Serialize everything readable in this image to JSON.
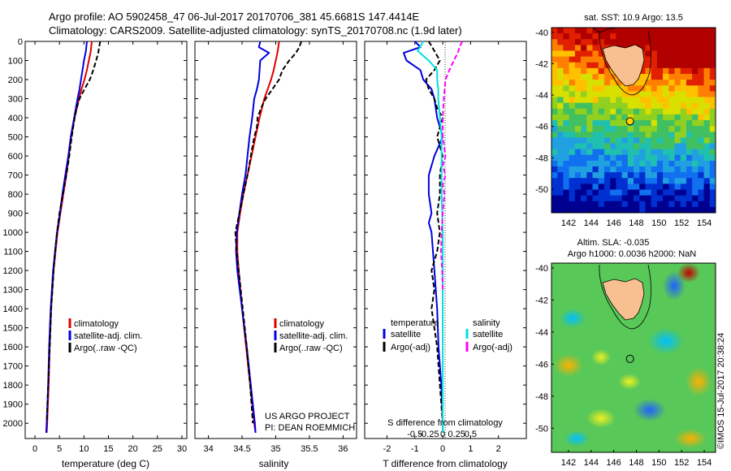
{
  "header": {
    "line1": "Argo profile: AO 5902458_47 06-Jul-2017 20170706_381 45.6681S 147.4414E",
    "line2": "Climatology: CARS2009. Satellite-adjusted climatology: synTS_20170708.nc (1.9d later)"
  },
  "colors": {
    "climatology": "#e00000",
    "satellite": "#0000e0",
    "argo": "#000000",
    "sat_salinity": "#00e0e0",
    "argo_salinity": "#ff00ff"
  },
  "credits": {
    "project": "US ARGO PROJECT",
    "pi": "PI: DEAN ROEMMICH",
    "stamp": "©IMOS 15-Jul-2017 20:38:24"
  },
  "chart_data": [
    {
      "id": "temperature",
      "type": "line",
      "xlabel": "temperature (deg C)",
      "xlim": [
        -2,
        31
      ],
      "xticks": [
        0,
        5,
        10,
        15,
        20,
        25,
        30
      ],
      "xtick_labels": [
        "0",
        "5",
        "10",
        "15",
        "20",
        "25",
        "30"
      ],
      "ylim": [
        2080,
        0
      ],
      "yticks": [
        0,
        100,
        200,
        300,
        400,
        500,
        600,
        700,
        800,
        900,
        1000,
        1100,
        1200,
        1300,
        1400,
        1500,
        1600,
        1700,
        1800,
        1900,
        2000
      ],
      "ytick_labels": [
        "0",
        "100",
        "200",
        "300",
        "400",
        "500",
        "600",
        "700",
        "800",
        "900",
        "1000",
        "1100",
        "1200",
        "1300",
        "1400",
        "1500",
        "1600",
        "1700",
        "1800",
        "1900",
        "2000"
      ],
      "legend": {
        "position": "lower-right",
        "entries": [
          "climatology",
          "satellite-adj. clim.",
          "Argo(..raw -QC)"
        ]
      },
      "series": [
        {
          "name": "climatology",
          "color": "#e00000",
          "dash": "none",
          "depth": [
            0,
            50,
            100,
            150,
            200,
            250,
            300,
            400,
            500,
            600,
            700,
            800,
            900,
            1000,
            1200,
            1400,
            1600,
            1800,
            2000,
            2050
          ],
          "values": [
            11.6,
            11.4,
            11.0,
            10.6,
            10.1,
            9.5,
            9.0,
            8.1,
            7.4,
            6.9,
            6.4,
            5.8,
            5.2,
            4.6,
            3.8,
            3.3,
            3.0,
            2.8,
            2.5,
            2.4
          ]
        },
        {
          "name": "satellite-adj. clim.",
          "color": "#0000e0",
          "dash": "none",
          "depth": [
            0,
            50,
            100,
            150,
            200,
            250,
            300,
            400,
            500,
            600,
            700,
            800,
            900,
            1000,
            1200,
            1400,
            1600,
            1800,
            2000,
            2050
          ],
          "values": [
            10.6,
            10.4,
            10.0,
            9.7,
            9.4,
            9.1,
            8.7,
            8.0,
            7.3,
            6.8,
            6.2,
            5.6,
            5.1,
            4.5,
            3.7,
            3.2,
            2.9,
            2.7,
            2.4,
            2.3
          ]
        },
        {
          "name": "Argo(..raw -QC)",
          "color": "#000000",
          "dash": "6,3",
          "depth": [
            0,
            30,
            60,
            100,
            150,
            200,
            250,
            300,
            350,
            400,
            500,
            600,
            700,
            800,
            900,
            1000,
            1100,
            1200,
            1400,
            1600,
            1800,
            2000
          ],
          "values": [
            13.3,
            13.1,
            12.9,
            12.5,
            11.9,
            11.2,
            10.1,
            9.1,
            8.5,
            8.1,
            7.5,
            7.0,
            6.4,
            5.7,
            5.0,
            4.5,
            4.1,
            3.8,
            3.3,
            3.0,
            2.7,
            2.4
          ]
        }
      ]
    },
    {
      "id": "salinity",
      "type": "line",
      "xlabel": "salinity",
      "xlim": [
        33.8,
        36.2
      ],
      "xticks": [
        34,
        34.5,
        35,
        35.5,
        36
      ],
      "xtick_labels": [
        "34",
        "34.5",
        "35",
        "35.5",
        "36"
      ],
      "ylim": [
        2080,
        0
      ],
      "legend": {
        "position": "lower-right",
        "entries": [
          "climatology",
          "satellite-adj. clim.",
          "Argo(..raw -QC)"
        ]
      },
      "series": [
        {
          "name": "climatology",
          "color": "#e00000",
          "dash": "none",
          "depth": [
            0,
            50,
            100,
            150,
            200,
            250,
            300,
            400,
            500,
            600,
            700,
            800,
            900,
            1000,
            1100,
            1200,
            1400,
            1600,
            1800,
            2000,
            2050
          ],
          "values": [
            35.05,
            35.03,
            35.0,
            34.97,
            34.93,
            34.88,
            34.83,
            34.76,
            34.7,
            34.64,
            34.58,
            34.52,
            34.47,
            34.43,
            34.43,
            34.45,
            34.5,
            34.56,
            34.62,
            34.68,
            34.7
          ]
        },
        {
          "name": "satellite-adj. clim.",
          "color": "#0000e0",
          "dash": "none",
          "depth": [
            0,
            30,
            60,
            100,
            150,
            200,
            250,
            300,
            400,
            500,
            600,
            700,
            800,
            900,
            1000,
            1100,
            1200,
            1400,
            1600,
            1800,
            2000,
            2050
          ],
          "values": [
            34.77,
            34.75,
            34.9,
            34.77,
            34.76,
            34.75,
            34.72,
            34.68,
            34.65,
            34.61,
            34.58,
            34.55,
            34.5,
            34.46,
            34.42,
            34.41,
            34.43,
            34.5,
            34.57,
            34.63,
            34.69,
            34.7
          ]
        },
        {
          "name": "Argo(..raw -QC)",
          "color": "#000000",
          "dash": "6,3",
          "depth": [
            0,
            30,
            60,
            100,
            150,
            200,
            250,
            300,
            350,
            400,
            450,
            500,
            600,
            700,
            800,
            900,
            1000,
            1100,
            1200,
            1400,
            1600,
            1800,
            2000
          ],
          "values": [
            35.38,
            35.35,
            35.3,
            35.2,
            35.1,
            35.05,
            34.95,
            34.85,
            34.78,
            34.73,
            34.72,
            34.68,
            34.63,
            34.58,
            34.52,
            34.46,
            34.4,
            34.42,
            34.45,
            34.51,
            34.57,
            34.62,
            34.66
          ]
        }
      ]
    },
    {
      "id": "difference",
      "type": "line",
      "xlabel": "T difference from climatology",
      "xlim": [
        -2.8,
        3.0
      ],
      "xticks": [
        -2,
        -1,
        0,
        1,
        2
      ],
      "xtick_labels": [
        "-2",
        "-1",
        "0",
        "1",
        "2"
      ],
      "top_xlabel": "S difference from climatology",
      "top_xticks": [
        -0.5,
        -0.25,
        0,
        0.25,
        0.5
      ],
      "top_xtick_labels": [
        "-0.5",
        "-0.25",
        "0",
        "0.25",
        "0.5"
      ],
      "ylim": [
        2080,
        0
      ],
      "legend": {
        "position": "lower-center",
        "entries": [
          "temperature",
          "satellite",
          "Argo(-adj)",
          "salinity",
          "satellite",
          "Argo(-adj)"
        ]
      },
      "series": [
        {
          "name": "temperature satellite",
          "color": "#0000e0",
          "dash": "none",
          "depth": [
            0,
            30,
            60,
            100,
            150,
            200,
            250,
            300,
            400,
            500,
            600,
            700,
            800,
            900,
            950,
            1000,
            1200,
            1400,
            1600,
            1800,
            2000,
            2050
          ],
          "values": [
            -1.0,
            -0.8,
            -1.4,
            -1.3,
            -0.8,
            -0.7,
            -0.4,
            -0.3,
            -0.2,
            0.0,
            -0.3,
            -0.5,
            -0.5,
            -0.4,
            -0.5,
            -0.4,
            -0.3,
            -0.2,
            -0.15,
            -0.05,
            0.0,
            0.0
          ]
        },
        {
          "name": "temperature Argo(-adj)",
          "color": "#000000",
          "dash": "6,3",
          "depth": [
            0,
            50,
            100,
            150,
            200,
            250,
            300,
            350,
            400,
            450,
            500,
            600,
            700,
            800,
            900,
            1000,
            1100,
            1200,
            1300,
            1400,
            1500,
            1600,
            1800,
            2000
          ],
          "values": [
            -0.5,
            -0.3,
            -0.1,
            -0.3,
            -0.6,
            -0.5,
            -0.3,
            -0.2,
            0.0,
            -0.1,
            -0.2,
            0.0,
            -0.1,
            -0.1,
            -0.2,
            -0.1,
            -0.2,
            -0.4,
            -0.3,
            -0.4,
            -0.3,
            -0.2,
            -0.1,
            0.0
          ]
        },
        {
          "name": "salinity satellite",
          "color": "#00e0e0",
          "dash": "none",
          "depth": [
            0,
            50,
            100,
            150,
            200,
            250,
            300,
            400,
            500,
            600,
            700,
            800,
            900,
            1000,
            1200,
            1400,
            1600,
            1800,
            2000,
            2050
          ],
          "values": [
            -0.35,
            -0.45,
            -0.25,
            -0.1,
            -0.1,
            -0.08,
            -0.08,
            -0.05,
            -0.02,
            -0.02,
            -0.02,
            -0.02,
            -0.01,
            0.0,
            0.0,
            0.0,
            0.0,
            0.0,
            0.0,
            0.0
          ]
        },
        {
          "name": "salinity Argo(-adj)",
          "color": "#ff00ff",
          "dash": "6,3",
          "depth": [
            0,
            30,
            60,
            100,
            150,
            200,
            300,
            400,
            500,
            600,
            650,
            700,
            750,
            800,
            900,
            1000,
            1100,
            1200,
            1300
          ],
          "values": [
            0.35,
            0.3,
            0.27,
            0.2,
            0.12,
            0.05,
            0.02,
            0.0,
            0.0,
            0.05,
            0.0,
            0.05,
            0.0,
            0.03,
            0.0,
            -0.02,
            -0.03,
            -0.01,
            0.0
          ]
        }
      ]
    },
    {
      "id": "sst_map",
      "type": "heatmap",
      "title": "sat. SST: 10.9  Argo: 13.5",
      "xlim": [
        140.5,
        155
      ],
      "xticks": [
        142,
        144,
        146,
        148,
        150,
        152,
        154
      ],
      "xtick_labels": [
        "142",
        "144",
        "146",
        "148",
        "150",
        "152",
        "154"
      ],
      "ylim": [
        -51.5,
        -39.7
      ],
      "yticks": [
        -40,
        -42,
        -44,
        -46,
        -48,
        -50
      ],
      "ytick_labels": [
        "-40",
        "-42",
        "-44",
        "-46",
        "-48",
        "-50"
      ],
      "marker": {
        "lon": 147.44,
        "lat": -45.67,
        "fill": "#ffd400"
      }
    },
    {
      "id": "sla_map",
      "type": "heatmap",
      "title": "Altim. SLA: -0.035",
      "subtitle": "Argo h1000: 0.0036 h2000: NaN",
      "xlim": [
        140.5,
        155
      ],
      "xticks": [
        142,
        144,
        146,
        148,
        150,
        152,
        154
      ],
      "xtick_labels": [
        "142",
        "144",
        "146",
        "148",
        "150",
        "152",
        "154"
      ],
      "ylim": [
        -51.5,
        -39.7
      ],
      "yticks": [
        -40,
        -42,
        -44,
        -46,
        -48,
        -50
      ],
      "ytick_labels": [
        "-40",
        "-42",
        "-44",
        "-46",
        "-48",
        "-50"
      ],
      "marker": {
        "lon": 147.44,
        "lat": -45.67,
        "fill": "none"
      }
    }
  ]
}
